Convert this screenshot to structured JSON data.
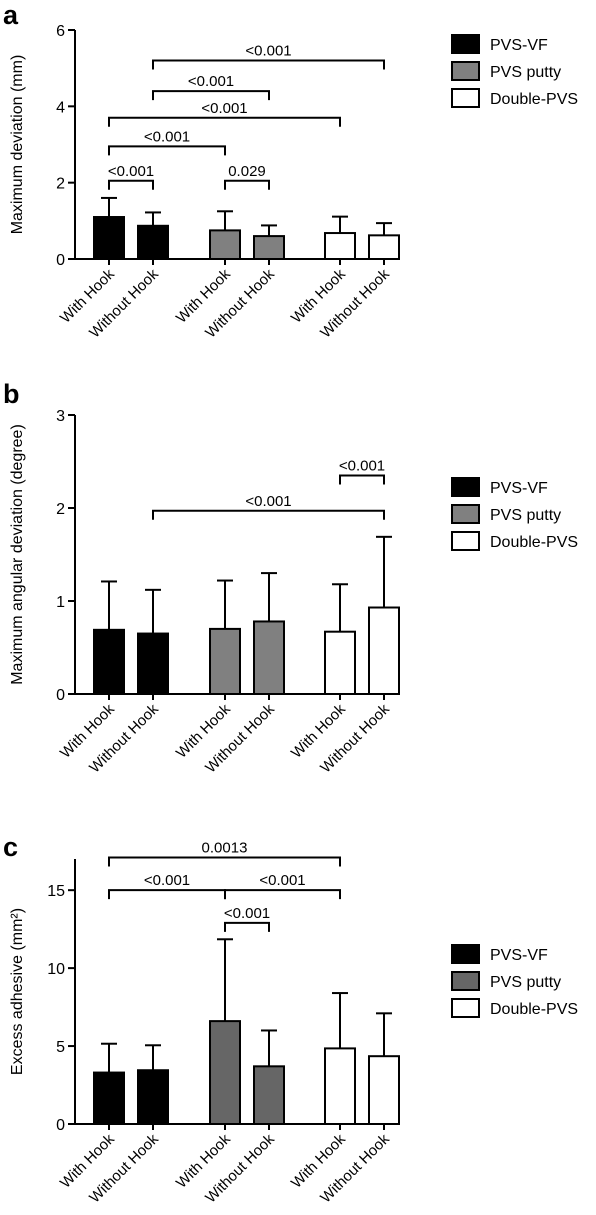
{
  "chart_data": [
    {
      "panel_label": "a",
      "type": "bar",
      "ylabel": "Maximum deviation (mm)",
      "ylim": [
        0,
        6
      ],
      "yticks": [
        "0",
        "2",
        "4",
        "6"
      ],
      "categories": [
        "With Hook",
        "Without Hook",
        "With Hook",
        "Without Hook",
        "With Hook",
        "Without Hook"
      ],
      "groups": [
        "PVS-VF",
        "PVS-VF",
        "PVS putty",
        "PVS putty",
        "Double-PVS",
        "Double-PVS"
      ],
      "values": [
        1.1,
        0.87,
        0.75,
        0.6,
        0.68,
        0.62
      ],
      "errors": [
        0.5,
        0.35,
        0.5,
        0.28,
        0.43,
        0.32
      ],
      "legend": [
        {
          "name": "PVS-VF",
          "color": "#000000"
        },
        {
          "name": "PVS putty",
          "color": "#808080"
        },
        {
          "name": "Double-PVS",
          "color": "#ffffff"
        }
      ],
      "legend_position": "right",
      "significance": [
        {
          "from": 0,
          "to": 1,
          "y": 2.05,
          "label": "<0.001"
        },
        {
          "from": 2,
          "to": 3,
          "y": 2.05,
          "label": "0.029"
        },
        {
          "from": 0,
          "to": 2,
          "y": 2.95,
          "label": "<0.001"
        },
        {
          "from": 0,
          "to": 4,
          "y": 3.7,
          "label": "<0.001"
        },
        {
          "from": 1,
          "to": 3,
          "y": 4.4,
          "label": "<0.001"
        },
        {
          "from": 1,
          "to": 5,
          "y": 5.2,
          "label": "<0.001"
        }
      ]
    },
    {
      "panel_label": "b",
      "type": "bar",
      "ylabel": "Maximum angular deviation (degree)",
      "ylim": [
        0,
        3
      ],
      "yticks": [
        "0",
        "1",
        "2",
        "3"
      ],
      "categories": [
        "With Hook",
        "Without Hook",
        "With Hook",
        "Without Hook",
        "With Hook",
        "Without Hook"
      ],
      "groups": [
        "PVS-VF",
        "PVS-VF",
        "PVS putty",
        "PVS putty",
        "Double-PVS",
        "Double-PVS"
      ],
      "values": [
        0.69,
        0.65,
        0.7,
        0.78,
        0.67,
        0.93
      ],
      "errors": [
        0.52,
        0.47,
        0.52,
        0.52,
        0.51,
        0.76
      ],
      "legend": [
        {
          "name": "PVS-VF",
          "color": "#000000"
        },
        {
          "name": "PVS putty",
          "color": "#808080"
        },
        {
          "name": "Double-PVS",
          "color": "#ffffff"
        }
      ],
      "legend_position": "right",
      "significance": [
        {
          "from": 4,
          "to": 5,
          "y": 2.35,
          "label": "<0.001"
        },
        {
          "from": 1,
          "to": 5,
          "y": 1.97,
          "label": "<0.001"
        }
      ]
    },
    {
      "panel_label": "c",
      "type": "bar",
      "ylabel": "Excess adhesive (mm²)",
      "ylim": [
        0,
        17
      ],
      "yticks": [
        "0",
        "5",
        "10",
        "15"
      ],
      "categories": [
        "With Hook",
        "Without Hook",
        "With Hook",
        "Without Hook",
        "With Hook",
        "Without Hook"
      ],
      "groups": [
        "PVS-VF",
        "PVS-VF",
        "PVS putty",
        "PVS putty",
        "Double-PVS",
        "Double-PVS"
      ],
      "values": [
        3.3,
        3.45,
        6.6,
        3.7,
        4.85,
        4.35
      ],
      "errors": [
        1.85,
        1.6,
        5.25,
        2.3,
        3.55,
        2.75
      ],
      "legend": [
        {
          "name": "PVS-VF",
          "color": "#000000"
        },
        {
          "name": "PVS putty",
          "color": "#666666"
        },
        {
          "name": "Double-PVS",
          "color": "#ffffff"
        }
      ],
      "legend_position": "right",
      "significance": [
        {
          "from": 2,
          "to": 3,
          "y": 12.9,
          "label": "<0.001"
        },
        {
          "from": 0,
          "to": 2,
          "y": 15.0,
          "label": "<0.001"
        },
        {
          "from": 2,
          "to": 4,
          "y": 15.0,
          "label": "<0.001"
        },
        {
          "from": 0,
          "to": 4,
          "y": 17.1,
          "label": "0.0013"
        }
      ]
    }
  ]
}
